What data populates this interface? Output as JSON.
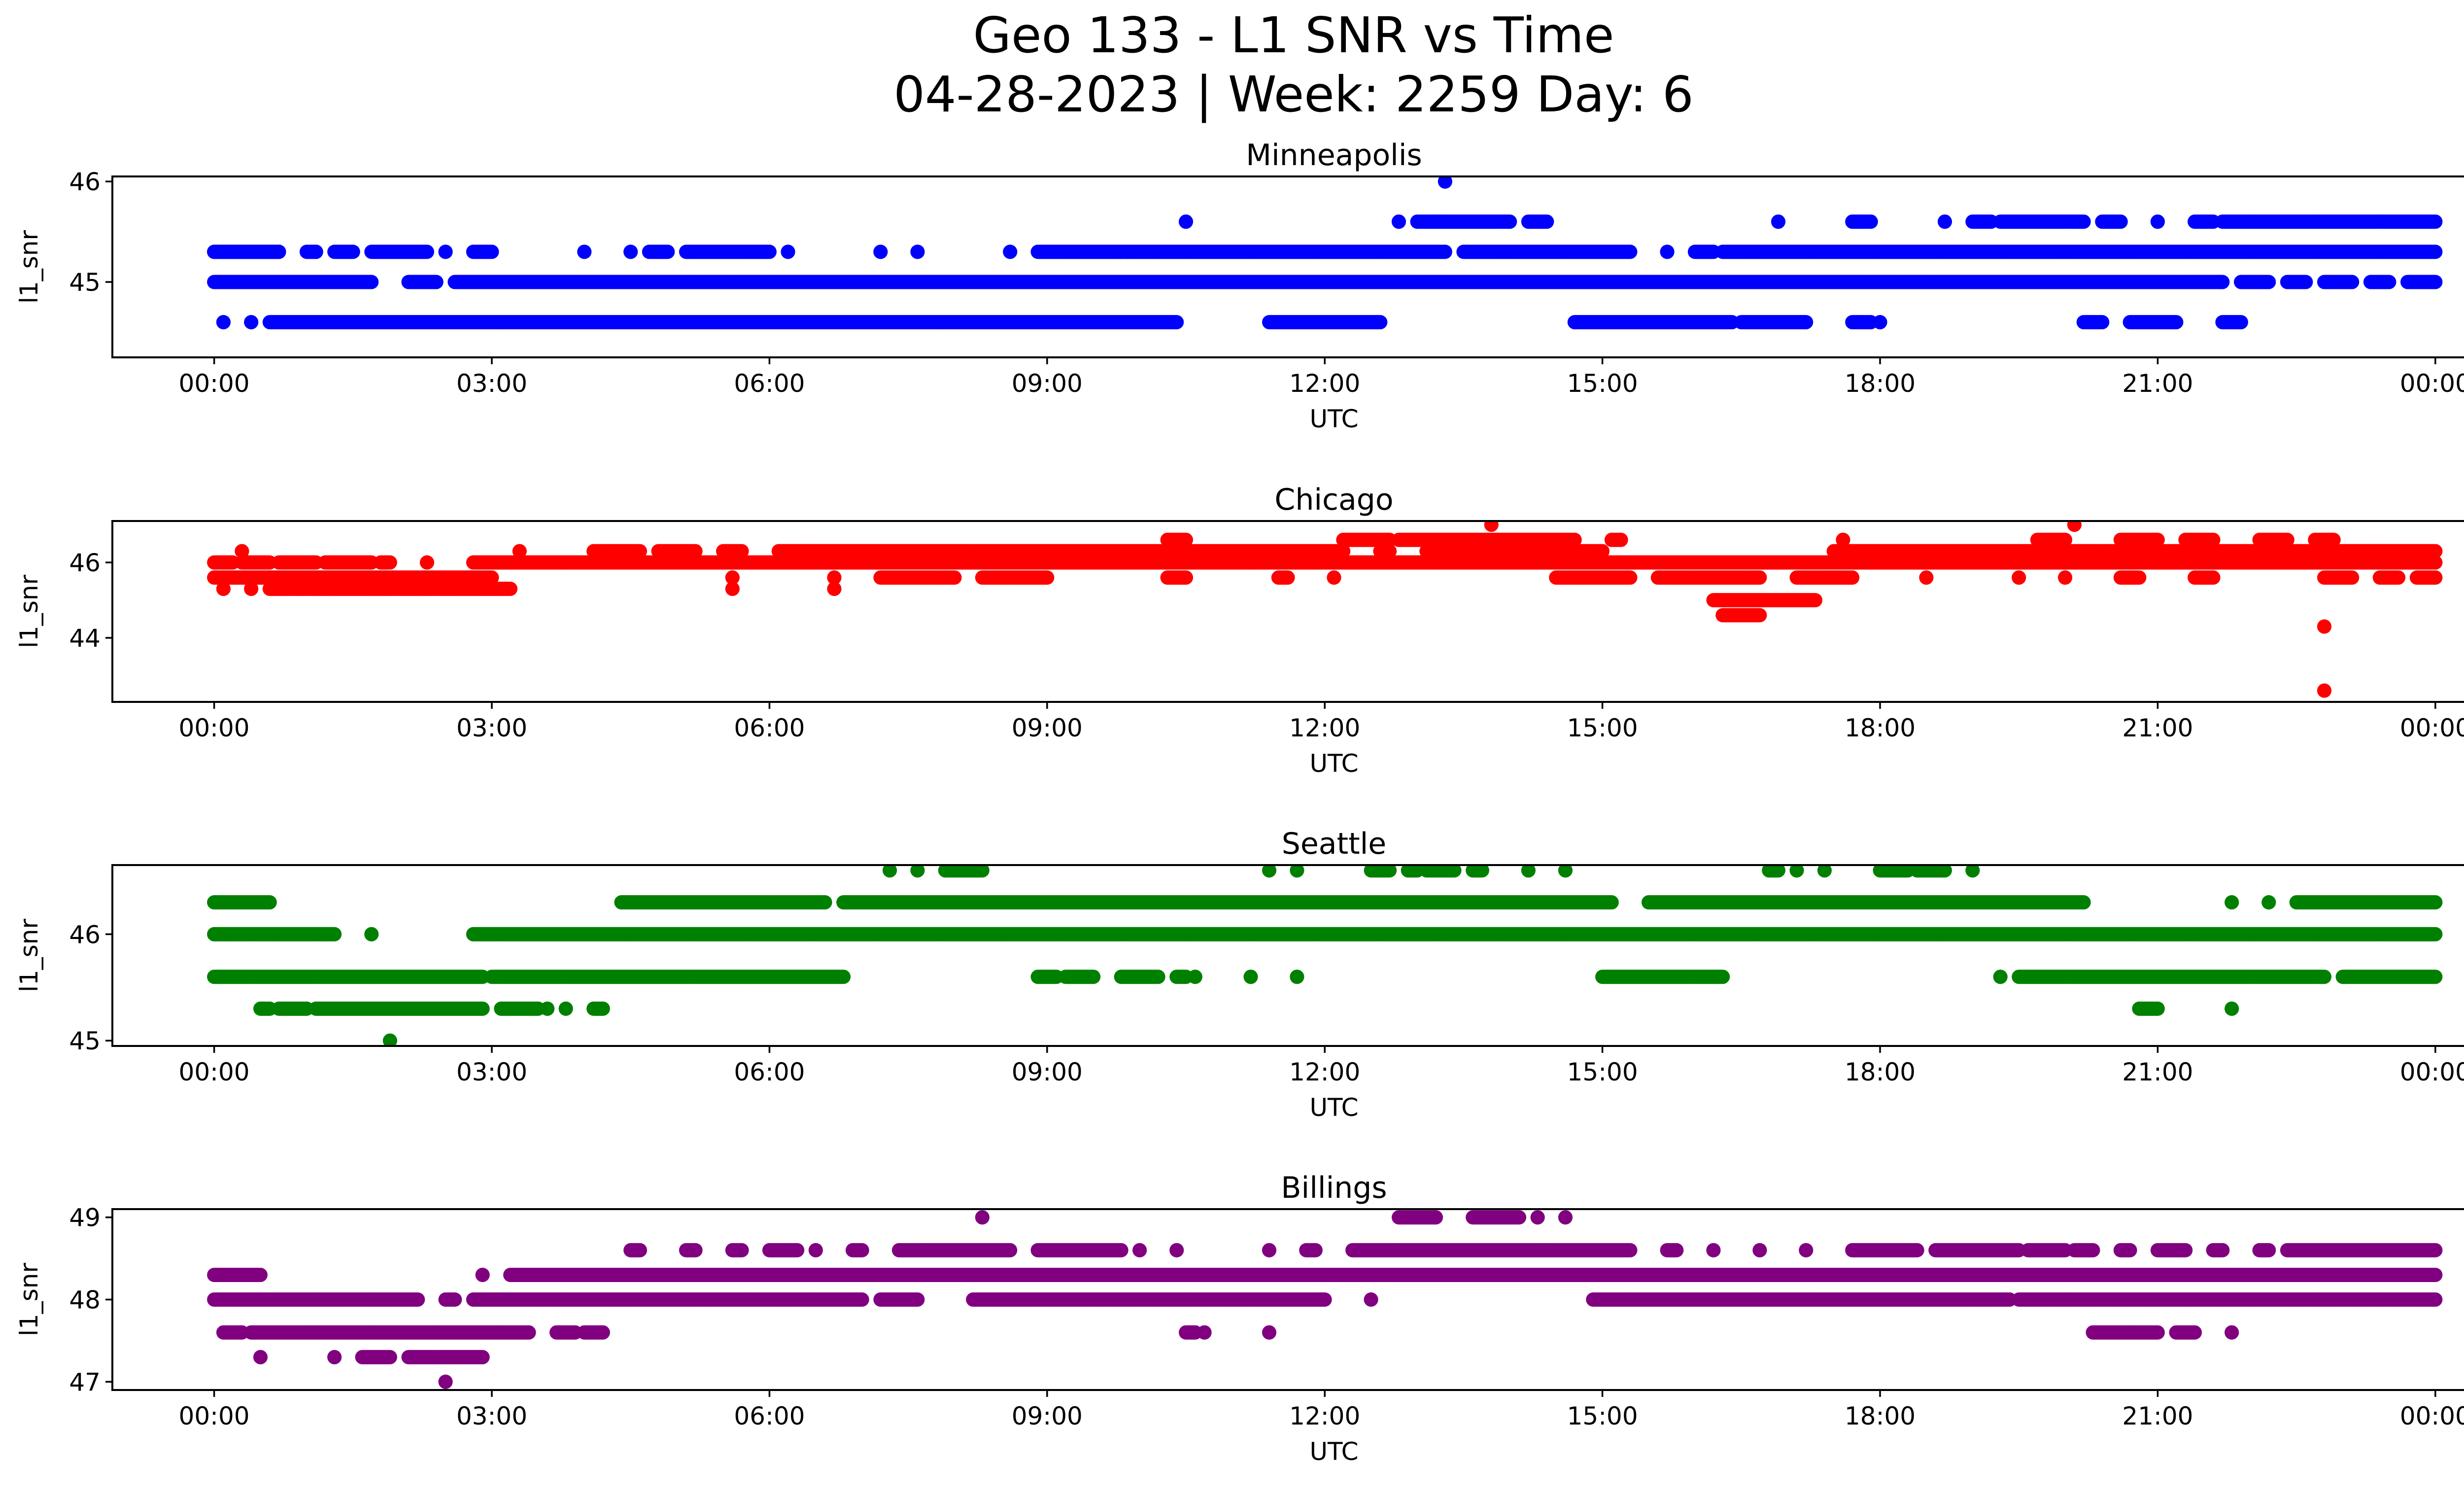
{
  "figure": {
    "title_line1": "Geo 133 - L1 SNR vs Time",
    "title_line2": "04-28-2023 | Week: 2259 Day: 6"
  },
  "chart_data": [
    {
      "type": "scatter",
      "title": "Minneapolis",
      "xlabel": "UTC",
      "ylabel": "l1_snr",
      "color": "#0000ff",
      "xlim_hours": [
        -1.1,
        25.3
      ],
      "ylim": [
        44.25,
        46.05
      ],
      "x_ticks": [
        "00:00",
        "03:00",
        "06:00",
        "09:00",
        "12:00",
        "15:00",
        "18:00",
        "21:00",
        "00:00"
      ],
      "y_ticks": [
        45,
        46
      ],
      "levels": [
        {
          "y": 45.3,
          "segments": [
            [
              0,
              0.7
            ],
            [
              1.1,
              1.1
            ],
            [
              1.3,
              1.5
            ],
            [
              1.7,
              2.3
            ],
            [
              2.5,
              2.5
            ],
            [
              2.8,
              3.0
            ],
            [
              7.2,
              7.2
            ],
            [
              7.6,
              7.6
            ],
            [
              8.6,
              8.6
            ],
            [
              8.9,
              10.2
            ]
          ]
        },
        {
          "y": 44.6,
          "segments": [
            [
              0.1,
              0.1
            ],
            [
              0.4,
              0.4
            ],
            [
              0.6,
              10.4
            ],
            [
              11.4,
              12.6
            ],
            [
              14.7,
              16.4
            ],
            [
              16.5,
              17.2
            ],
            [
              17.7,
              17.9
            ],
            [
              18.0,
              18.0
            ],
            [
              20.2,
              20.4
            ],
            [
              20.7,
              21.2
            ],
            [
              21.7,
              21.9
            ]
          ]
        },
        {
          "y": 45.0,
          "segments": [
            [
              0,
              1.7
            ],
            [
              2.1,
              2.4
            ],
            [
              2.6,
              21.7
            ],
            [
              21.9,
              22.2
            ],
            [
              22.4,
              22.6
            ],
            [
              22.8,
              23.1
            ],
            [
              23.3,
              23.5
            ],
            [
              23.7,
              24.0
            ]
          ]
        },
        {
          "y": 45.3,
          "segments": [
            [
              0,
              0.7
            ],
            [
              1.0,
              1.1
            ],
            [
              4.0,
              4.0
            ],
            [
              4.5,
              4.5
            ],
            [
              4.7,
              4.9
            ],
            [
              5.1,
              6.0
            ],
            [
              6.2,
              6.2
            ],
            [
              9.8,
              9.8
            ],
            [
              10.2,
              13.3
            ],
            [
              13.5,
              15.3
            ],
            [
              15.7,
              15.7
            ],
            [
              16.0,
              16.2
            ],
            [
              16.3,
              24.0
            ]
          ]
        },
        {
          "y": 45.6,
          "segments": [
            [
              10.5,
              10.5
            ],
            [
              12.8,
              12.8
            ],
            [
              13.0,
              14.0
            ],
            [
              14.2,
              14.4
            ],
            [
              16.9,
              16.9
            ],
            [
              17.7,
              17.9
            ],
            [
              18.7,
              18.7
            ],
            [
              19.0,
              19.2
            ],
            [
              19.3,
              20.2
            ],
            [
              20.4,
              20.6
            ],
            [
              21.0,
              21.0
            ],
            [
              21.4,
              21.6
            ],
            [
              21.7,
              24.0
            ]
          ]
        },
        {
          "y": 46.0,
          "segments": [
            [
              13.3,
              13.3
            ]
          ]
        }
      ]
    },
    {
      "type": "scatter",
      "title": "Chicago",
      "xlabel": "UTC",
      "ylabel": "l1_snr",
      "color": "#ff0000",
      "xlim_hours": [
        -1.1,
        25.3
      ],
      "ylim": [
        42.3,
        47.1
      ],
      "x_ticks": [
        "00:00",
        "03:00",
        "06:00",
        "09:00",
        "12:00",
        "15:00",
        "18:00",
        "21:00",
        "00:00"
      ],
      "y_ticks": [
        44,
        46
      ],
      "levels": [
        {
          "y": 45.6,
          "segments": [
            [
              0,
              3.0
            ],
            [
              5.6,
              5.6
            ],
            [
              6.7,
              6.7
            ],
            [
              7.2,
              8.0
            ],
            [
              8.3,
              9.0
            ],
            [
              10.3,
              10.5
            ],
            [
              11.5,
              11.6
            ],
            [
              12.1,
              12.1
            ],
            [
              14.5,
              15.3
            ],
            [
              15.6,
              16.7
            ],
            [
              17.1,
              17.7
            ],
            [
              18.5,
              18.5
            ],
            [
              19.5,
              19.5
            ],
            [
              20.0,
              20.0
            ],
            [
              20.6,
              20.8
            ],
            [
              21.4,
              21.6
            ],
            [
              22.8,
              23.1
            ],
            [
              23.4,
              23.6
            ],
            [
              23.8,
              24.0
            ]
          ]
        },
        {
          "y": 45.3,
          "segments": [
            [
              0.1,
              0.1
            ],
            [
              0.4,
              0.4
            ],
            [
              0.6,
              3.0
            ],
            [
              3.0,
              3.2
            ],
            [
              5.6,
              5.6
            ],
            [
              6.7,
              6.7
            ]
          ]
        },
        {
          "y": 46.0,
          "segments": [
            [
              0,
              0.2
            ],
            [
              0.3,
              0.6
            ],
            [
              0.7,
              1.1
            ],
            [
              1.2,
              1.7
            ],
            [
              1.8,
              1.9
            ],
            [
              2.3,
              2.3
            ],
            [
              2.8,
              24.0
            ]
          ]
        },
        {
          "y": 46.3,
          "segments": [
            [
              0.3,
              0.3
            ],
            [
              3.3,
              3.3
            ],
            [
              4.1,
              4.6
            ],
            [
              4.8,
              5.2
            ],
            [
              5.5,
              5.7
            ],
            [
              6.1,
              12.2
            ],
            [
              12.6,
              12.7
            ],
            [
              13.1,
              15.0
            ],
            [
              17.5,
              24.0
            ]
          ]
        },
        {
          "y": 46.6,
          "segments": [
            [
              10.3,
              10.5
            ],
            [
              12.2,
              12.7
            ],
            [
              12.8,
              14.7
            ],
            [
              15.1,
              15.2
            ],
            [
              17.6,
              17.6
            ],
            [
              19.7,
              20.0
            ],
            [
              20.6,
              21.0
            ],
            [
              21.3,
              21.6
            ],
            [
              22.1,
              22.4
            ],
            [
              22.7,
              22.9
            ]
          ]
        },
        {
          "y": 45.0,
          "segments": [
            [
              16.2,
              17.3
            ]
          ]
        },
        {
          "y": 44.6,
          "segments": [
            [
              16.3,
              16.7
            ]
          ]
        },
        {
          "y": 47.0,
          "segments": [
            [
              13.8,
              13.8
            ],
            [
              20.1,
              20.1
            ]
          ]
        },
        {
          "y": 44.3,
          "segments": [
            [
              22.8,
              22.8
            ]
          ]
        },
        {
          "y": 42.6,
          "segments": [
            [
              22.8,
              22.8
            ]
          ]
        }
      ]
    },
    {
      "type": "scatter",
      "title": "Seattle",
      "xlabel": "UTC",
      "ylabel": "l1_snr",
      "color": "#008000",
      "xlim_hours": [
        -1.1,
        25.3
      ],
      "ylim": [
        44.95,
        46.65
      ],
      "x_ticks": [
        "00:00",
        "03:00",
        "06:00",
        "09:00",
        "12:00",
        "15:00",
        "18:00",
        "21:00",
        "00:00"
      ],
      "y_ticks": [
        45,
        46
      ],
      "levels": [
        {
          "y": 45.3,
          "segments": [
            [
              0.5,
              0.6
            ],
            [
              0.7,
              1.0
            ],
            [
              1.1,
              2.9
            ],
            [
              3.1,
              3.5
            ],
            [
              3.6,
              3.6
            ],
            [
              3.8,
              3.8
            ],
            [
              4.1,
              4.2
            ]
          ]
        },
        {
          "y": 45.6,
          "segments": [
            [
              0,
              2.9
            ],
            [
              3.0,
              6.8
            ],
            [
              8.9,
              9.1
            ],
            [
              9.2,
              9.5
            ],
            [
              9.8,
              10.2
            ],
            [
              10.4,
              10.5
            ],
            [
              10.6,
              10.6
            ],
            [
              11.2,
              11.2
            ],
            [
              11.7,
              11.7
            ],
            [
              15.0,
              16.3
            ],
            [
              19.3,
              19.3
            ],
            [
              19.5,
              22.8
            ],
            [
              23.0,
              24.0
            ]
          ]
        },
        {
          "y": 46.0,
          "segments": [
            [
              0,
              1.3
            ],
            [
              1.7,
              1.7
            ],
            [
              2.8,
              24.0
            ]
          ]
        },
        {
          "y": 46.3,
          "segments": [
            [
              0,
              0.6
            ],
            [
              4.4,
              6.6
            ],
            [
              6.8,
              15.1
            ],
            [
              15.5,
              20.2
            ],
            [
              21.8,
              21.8
            ],
            [
              22.2,
              22.2
            ],
            [
              22.5,
              24.0
            ]
          ]
        },
        {
          "y": 46.6,
          "segments": [
            [
              7.3,
              7.3
            ],
            [
              7.6,
              7.6
            ],
            [
              7.9,
              8.3
            ],
            [
              11.4,
              11.4
            ],
            [
              11.7,
              11.7
            ],
            [
              12.5,
              12.7
            ],
            [
              12.9,
              13.0
            ],
            [
              13.1,
              13.4
            ],
            [
              13.6,
              13.7
            ],
            [
              14.2,
              14.2
            ],
            [
              14.6,
              14.6
            ],
            [
              16.8,
              16.9
            ],
            [
              17.1,
              17.1
            ],
            [
              17.4,
              17.4
            ],
            [
              18.0,
              18.3
            ],
            [
              18.4,
              18.7
            ],
            [
              19.0,
              19.0
            ]
          ]
        },
        {
          "y": 45.0,
          "segments": [
            [
              1.9,
              1.9
            ]
          ]
        },
        {
          "y": 45.3,
          "segments": [
            [
              20.8,
              21.0
            ],
            [
              21.8,
              21.8
            ]
          ]
        }
      ]
    },
    {
      "type": "scatter",
      "title": "Billings",
      "xlabel": "UTC",
      "ylabel": "l1_snr",
      "color": "#800080",
      "xlim_hours": [
        -1.1,
        25.3
      ],
      "ylim": [
        46.9,
        49.1
      ],
      "x_ticks": [
        "00:00",
        "03:00",
        "06:00",
        "09:00",
        "12:00",
        "15:00",
        "18:00",
        "21:00",
        "00:00"
      ],
      "y_ticks": [
        47,
        48,
        49
      ],
      "levels": [
        {
          "y": 48.3,
          "segments": [
            [
              0,
              0.5
            ],
            [
              2.9,
              2.9
            ],
            [
              3.2,
              24.0
            ]
          ]
        },
        {
          "y": 48.0,
          "segments": [
            [
              0,
              2.2
            ],
            [
              2.5,
              2.6
            ],
            [
              2.8,
              7.0
            ],
            [
              7.2,
              7.6
            ],
            [
              8.2,
              12.0
            ],
            [
              12.5,
              12.5
            ],
            [
              14.9,
              19.4
            ],
            [
              19.5,
              24.0
            ]
          ]
        },
        {
          "y": 47.6,
          "segments": [
            [
              0.1,
              0.3
            ],
            [
              0.4,
              3.4
            ],
            [
              3.7,
              3.9
            ],
            [
              4.0,
              4.2
            ],
            [
              10.5,
              10.6
            ],
            [
              10.7,
              10.7
            ],
            [
              11.4,
              11.4
            ],
            [
              20.3,
              21.0
            ],
            [
              21.2,
              21.4
            ],
            [
              21.8,
              21.8
            ]
          ]
        },
        {
          "y": 47.3,
          "segments": [
            [
              0.5,
              0.5
            ],
            [
              1.3,
              1.3
            ],
            [
              1.6,
              1.9
            ],
            [
              2.1,
              2.9
            ]
          ]
        },
        {
          "y": 47.0,
          "segments": [
            [
              2.5,
              2.5
            ]
          ]
        },
        {
          "y": 48.6,
          "segments": [
            [
              4.5,
              4.6
            ],
            [
              5.1,
              5.2
            ],
            [
              5.6,
              5.7
            ],
            [
              6.0,
              6.3
            ],
            [
              6.5,
              6.5
            ],
            [
              6.9,
              7.0
            ],
            [
              7.4,
              8.6
            ],
            [
              8.9,
              9.8
            ],
            [
              10.0,
              10.0
            ],
            [
              10.4,
              10.4
            ],
            [
              11.4,
              11.4
            ],
            [
              11.8,
              11.9
            ],
            [
              12.3,
              15.3
            ],
            [
              15.7,
              15.8
            ],
            [
              16.2,
              16.2
            ],
            [
              16.7,
              16.7
            ],
            [
              17.2,
              17.2
            ],
            [
              17.7,
              18.4
            ],
            [
              18.6,
              19.5
            ],
            [
              19.6,
              20.0
            ],
            [
              20.1,
              20.3
            ],
            [
              20.6,
              20.7
            ],
            [
              21.0,
              21.3
            ],
            [
              21.6,
              21.7
            ],
            [
              22.1,
              22.2
            ],
            [
              22.4,
              24.0
            ]
          ]
        },
        {
          "y": 49.0,
          "segments": [
            [
              8.3,
              8.3
            ],
            [
              12.8,
              13.2
            ],
            [
              13.6,
              14.1
            ],
            [
              14.3,
              14.3
            ],
            [
              14.6,
              14.6
            ]
          ]
        }
      ]
    }
  ]
}
